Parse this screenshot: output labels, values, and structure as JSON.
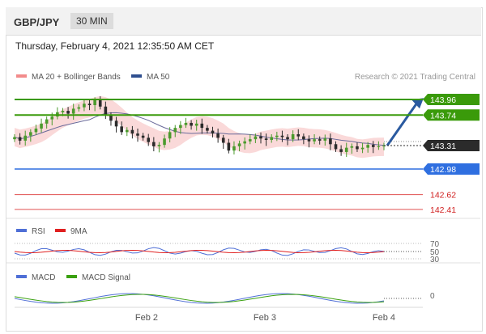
{
  "header": {
    "symbol": "GBP/JPY",
    "timeframe": "30 MIN"
  },
  "datetime": "Thursday, February 4, 2021 12:35:50 AM CET",
  "legend": {
    "ma_bb": "MA 20 + Bollinger Bands",
    "ma50": "MA 50",
    "credit": "Research © 2021 Trading Central"
  },
  "colors": {
    "resistance": "#3a9a0a",
    "support": "#2f6fe0",
    "target_line": "#e05050",
    "last_price": "#2b2b2b",
    "bull": "#4b9a2d",
    "bear": "#2b2b2b",
    "bands": "#f9d2d2",
    "ma50": "#6a6a9a",
    "arrow": "#2a5aa0",
    "rsi": "#4f6fd6",
    "rsi9": "#e02020",
    "macd": "#4f6fd6",
    "macd_signal": "#3aa010"
  },
  "chart_data": [
    {
      "type": "candlestick",
      "pair": "GBP/JPY",
      "x_ticks": [
        "Feb 2",
        "Feb 3",
        "Feb 4"
      ],
      "ylim": [
        142.25,
        144.1
      ],
      "levels": [
        {
          "value": 143.96,
          "label": "143.96",
          "kind": "resistance"
        },
        {
          "value": 143.74,
          "label": "143.74",
          "kind": "resistance"
        },
        {
          "value": 143.31,
          "label": "143.31",
          "kind": "last"
        },
        {
          "value": 142.98,
          "label": "142.98",
          "kind": "support"
        },
        {
          "value": 142.62,
          "label": "142.62",
          "kind": "target"
        },
        {
          "value": 142.41,
          "label": "142.41",
          "kind": "target"
        }
      ],
      "closes": [
        143.43,
        143.38,
        143.45,
        143.5,
        143.55,
        143.62,
        143.68,
        143.72,
        143.78,
        143.8,
        143.76,
        143.83,
        143.85,
        143.9,
        143.88,
        143.95,
        143.86,
        143.74,
        143.66,
        143.58,
        143.5,
        143.53,
        143.48,
        143.45,
        143.42,
        143.36,
        143.3,
        143.32,
        143.41,
        143.5,
        143.56,
        143.6,
        143.63,
        143.59,
        143.62,
        143.56,
        143.52,
        143.48,
        143.42,
        143.35,
        143.24,
        143.3,
        143.34,
        143.37,
        143.4,
        143.44,
        143.41,
        143.39,
        143.43,
        143.45,
        143.43,
        143.4,
        143.47,
        143.44,
        143.4,
        143.37,
        143.4,
        143.38,
        143.41,
        143.33,
        143.26,
        143.22,
        143.28,
        143.3,
        143.26,
        143.28,
        143.32,
        143.29,
        143.3,
        143.31
      ],
      "series": [
        {
          "name": "MA 20 + Bollinger Bands",
          "role": "bands"
        },
        {
          "name": "MA 50",
          "role": "ma50"
        }
      ]
    },
    {
      "type": "line",
      "panel": "RSI",
      "series_names": [
        "RSI",
        "9MA"
      ],
      "y_ticks": [
        "70",
        "50",
        "30"
      ]
    },
    {
      "type": "line",
      "panel": "MACD",
      "series_names": [
        "MACD",
        "MACD Signal"
      ],
      "y_ticks": [
        "0"
      ]
    }
  ]
}
